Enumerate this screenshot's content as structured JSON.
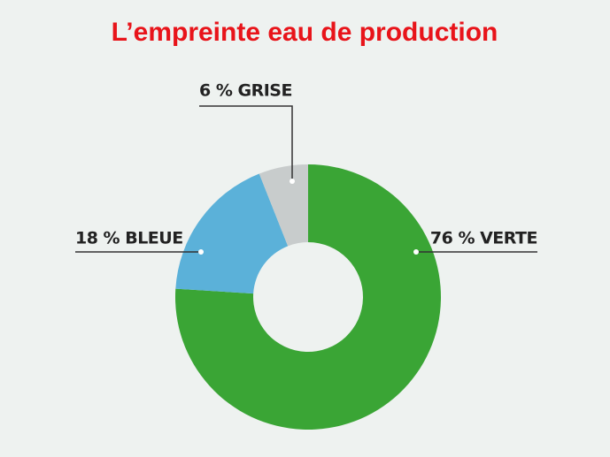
{
  "chart_data": {
    "type": "donut",
    "title": "L’empreinte eau de production",
    "values": [
      76,
      18,
      6
    ],
    "value_labels": [
      "76 % VERTE",
      "18 % BLEUE",
      "6 % GRISE"
    ],
    "colors": [
      "#3aa535",
      "#5bb1d9",
      "#c8cccc"
    ]
  }
}
